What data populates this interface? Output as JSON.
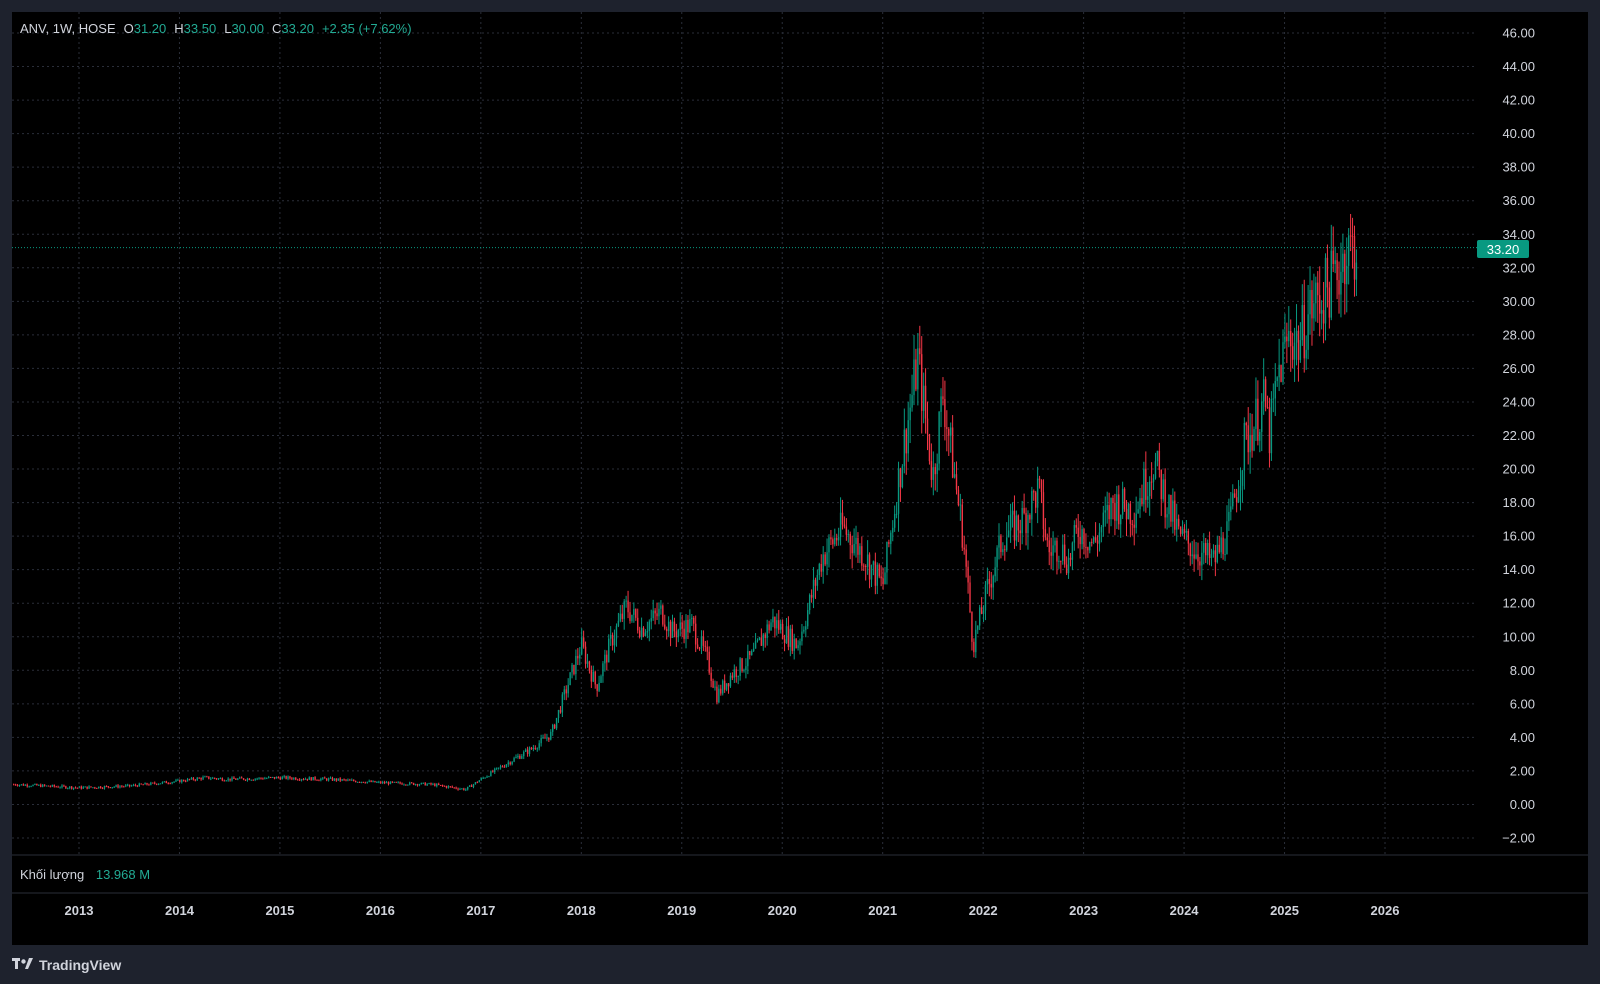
{
  "legend": {
    "symbol": "ANV, 1W, HOSE",
    "open_label": "O",
    "open": "31.20",
    "high_label": "H",
    "high": "33.50",
    "low_label": "L",
    "low": "30.00",
    "close_label": "C",
    "close": "33.20",
    "change": "+2.35 (+7.62%)"
  },
  "volume": {
    "label": "Khối lượng",
    "value": "13.968 M"
  },
  "last_price_tag": "33.20",
  "brand": {
    "name": "TradingView",
    "icon": "tradingview-logo-icon"
  },
  "colors": {
    "background": "#000000",
    "frame": "#1e222d",
    "up": "#089981",
    "down": "#f23645",
    "grid": "#2a2e39",
    "axis_text": "#d1d4dc"
  },
  "chart_data": {
    "type": "candlestick",
    "title": "ANV, 1W, HOSE",
    "grid": true,
    "x_ticks": [
      "2013",
      "2014",
      "2015",
      "2016",
      "2017",
      "2018",
      "2019",
      "2020",
      "2021",
      "2022",
      "2023",
      "2024",
      "2025",
      "2026"
    ],
    "y_ticks": [
      "46.00",
      "44.00",
      "42.00",
      "40.00",
      "38.00",
      "36.00",
      "34.00",
      "32.00",
      "30.00",
      "28.00",
      "26.00",
      "24.00",
      "22.00",
      "20.00",
      "18.00",
      "16.00",
      "14.00",
      "12.00",
      "10.00",
      "8.00",
      "6.00",
      "4.00",
      "2.00",
      "0.00",
      "−2.00"
    ],
    "y_range": [
      -2,
      46
    ],
    "last_price": 33.2,
    "series": {
      "time": [
        2012.35,
        2013.0,
        2013.5,
        2014.0,
        2014.25,
        2014.5,
        2015.0,
        2015.5,
        2016.0,
        2016.5,
        2016.85,
        2017.0,
        2017.3,
        2017.5,
        2017.7,
        2018.0,
        2018.15,
        2018.3,
        2018.45,
        2018.6,
        2018.8,
        2018.9,
        2019.1,
        2019.25,
        2019.35,
        2019.5,
        2019.7,
        2019.9,
        2020.15,
        2020.25,
        2020.4,
        2020.6,
        2020.8,
        2021.0,
        2021.2,
        2021.35,
        2021.5,
        2021.6,
        2021.8,
        2021.9,
        2022.05,
        2022.2,
        2022.4,
        2022.55,
        2022.65,
        2022.75,
        2022.85,
        2022.95,
        2023.1,
        2023.3,
        2023.5,
        2023.7,
        2023.8,
        2023.95,
        2024.15,
        2024.3,
        2024.45,
        2024.6,
        2024.8,
        2024.85,
        2024.95,
        2025.05,
        2025.15,
        2025.25,
        2025.4,
        2025.5,
        2025.55,
        2025.6,
        2025.7
      ],
      "close": [
        1.2,
        1.0,
        1.1,
        1.4,
        1.6,
        1.5,
        1.6,
        1.5,
        1.3,
        1.2,
        0.9,
        1.5,
        2.6,
        3.3,
        4.2,
        9.5,
        7.0,
        9.8,
        11.8,
        10.5,
        11.5,
        10.3,
        10.7,
        8.7,
        6.5,
        7.8,
        8.8,
        11.0,
        9.5,
        11.5,
        14.8,
        16.5,
        15.0,
        13.0,
        21.0,
        26.5,
        19.5,
        24.5,
        16.0,
        9.5,
        13.0,
        16.0,
        17.0,
        18.8,
        15.0,
        15.5,
        14.5,
        16.5,
        15.5,
        18.0,
        17.5,
        20.5,
        18.5,
        16.0,
        15.0,
        14.5,
        16.5,
        21.5,
        24.0,
        22.0,
        26.0,
        28.0,
        27.5,
        29.5,
        30.5,
        31.5,
        32.0,
        33.0,
        33.2
      ],
      "axis_labels_only": true
    }
  }
}
